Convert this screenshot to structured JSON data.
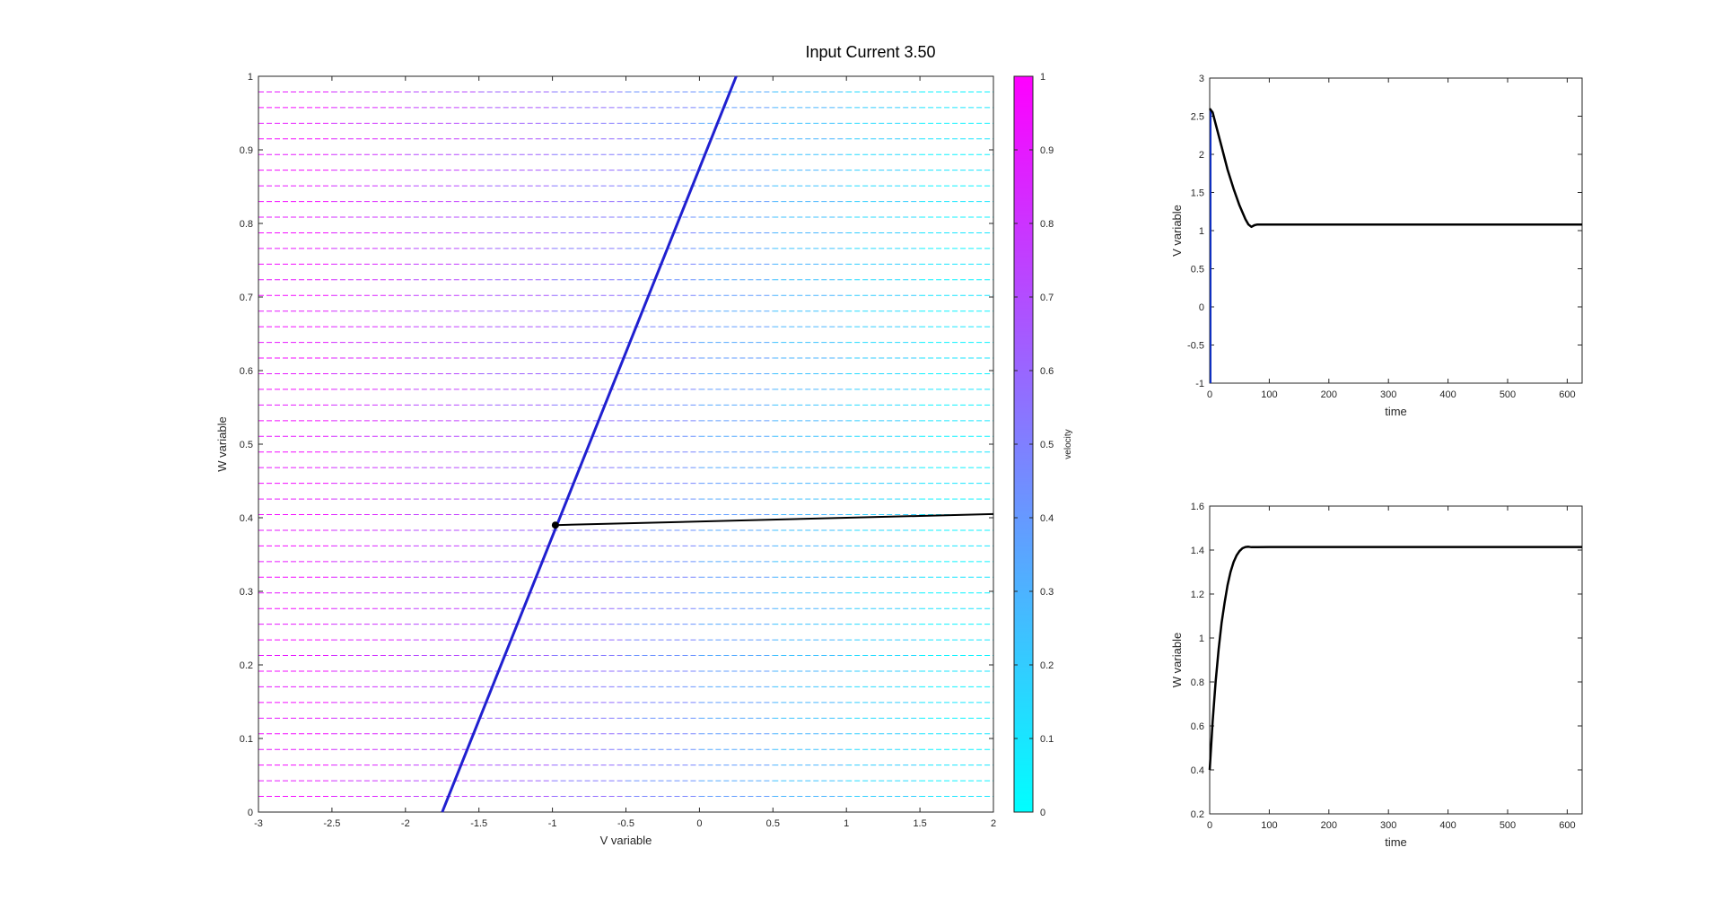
{
  "figure_title": "Input Current 3.50",
  "chart_data": [
    {
      "id": "phase",
      "type": "line",
      "title": "Input Current 3.50",
      "xlabel": "V variable",
      "ylabel": "W variable",
      "xlim": [
        -3,
        2
      ],
      "ylim": [
        0,
        1
      ],
      "xticks": [
        -3,
        -2.5,
        -2,
        -1.5,
        -1,
        -0.5,
        0,
        0.5,
        1,
        1.5,
        2
      ],
      "yticks": [
        0,
        0.1,
        0.2,
        0.3,
        0.4,
        0.5,
        0.6,
        0.7,
        0.8,
        0.9,
        1
      ],
      "xtick_labels": [
        "-3",
        "-2.5",
        "-2",
        "-1.5",
        "-1",
        "-0.5",
        "0",
        "0.5",
        "1",
        "1.5",
        "2"
      ],
      "ytick_labels": [
        "0",
        "0.1",
        "0.2",
        "0.3",
        "0.4",
        "0.5",
        "0.6",
        "0.7",
        "0.8",
        "0.9",
        "1"
      ],
      "series": [
        {
          "color": "#2020d0",
          "x": [
            -1.75,
            0.25
          ],
          "y": [
            0,
            1
          ]
        },
        {
          "color": "#000000",
          "x": [
            -0.98,
            2.0
          ],
          "y": [
            0.39,
            0.405
          ]
        }
      ],
      "marker": {
        "x": -0.98,
        "y": 0.39,
        "color": "#000000"
      },
      "quiver": {
        "rows": 48,
        "y_start": 0,
        "y_end": 1,
        "x_start": -3,
        "x_end": 2
      },
      "colorbar": {
        "label": "velocity",
        "range": [
          0,
          1
        ],
        "ticks": [
          0,
          0.1,
          0.2,
          0.3,
          0.4,
          0.5,
          0.6,
          0.7,
          0.8,
          0.9,
          1
        ],
        "tick_labels": [
          "0",
          "0.1",
          "0.2",
          "0.3",
          "0.4",
          "0.5",
          "0.6",
          "0.7",
          "0.8",
          "0.9",
          "1"
        ],
        "color_low": "#00ffff",
        "color_high": "#ff00ff"
      }
    },
    {
      "id": "v_time",
      "type": "line",
      "xlabel": "time",
      "ylabel": "V variable",
      "xlim": [
        0,
        625
      ],
      "ylim": [
        -1,
        3
      ],
      "xticks": [
        0,
        100,
        200,
        300,
        400,
        500,
        600
      ],
      "yticks": [
        -1,
        -0.5,
        0,
        0.5,
        1,
        1.5,
        2,
        2.5,
        3
      ],
      "xtick_labels": [
        "0",
        "100",
        "200",
        "300",
        "400",
        "500",
        "600"
      ],
      "ytick_labels": [
        "-1",
        "-0.5",
        "0",
        "0.5",
        "1",
        "1.5",
        "2",
        "2.5",
        "3"
      ],
      "series": [
        {
          "color": "#000000",
          "x": [
            0,
            5,
            10,
            20,
            30,
            40,
            50,
            60,
            65,
            70,
            75,
            80,
            90,
            100,
            150,
            200,
            300,
            400,
            500,
            625
          ],
          "y": [
            2.6,
            2.55,
            2.4,
            2.1,
            1.8,
            1.55,
            1.33,
            1.15,
            1.08,
            1.05,
            1.07,
            1.08,
            1.08,
            1.08,
            1.08,
            1.08,
            1.08,
            1.08,
            1.08,
            1.08
          ]
        }
      ]
    },
    {
      "id": "w_time",
      "type": "line",
      "xlabel": "time",
      "ylabel": "W variable",
      "xlim": [
        0,
        625
      ],
      "ylim": [
        0.2,
        1.6
      ],
      "xticks": [
        0,
        100,
        200,
        300,
        400,
        500,
        600
      ],
      "yticks": [
        0.2,
        0.4,
        0.6,
        0.8,
        1,
        1.2,
        1.4,
        1.6
      ],
      "xtick_labels": [
        "0",
        "100",
        "200",
        "300",
        "400",
        "500",
        "600"
      ],
      "ytick_labels": [
        "0.2",
        "0.4",
        "0.6",
        "0.8",
        "1",
        "1.2",
        "1.4",
        "1.6"
      ],
      "series": [
        {
          "color": "#000000",
          "x": [
            0,
            5,
            10,
            15,
            20,
            25,
            30,
            35,
            40,
            45,
            50,
            55,
            60,
            65,
            70,
            80,
            100,
            200,
            300,
            400,
            500,
            625
          ],
          "y": [
            0.4,
            0.62,
            0.8,
            0.95,
            1.07,
            1.16,
            1.24,
            1.3,
            1.345,
            1.375,
            1.395,
            1.408,
            1.414,
            1.415,
            1.413,
            1.413,
            1.414,
            1.414,
            1.414,
            1.414,
            1.414,
            1.414
          ]
        }
      ]
    }
  ]
}
